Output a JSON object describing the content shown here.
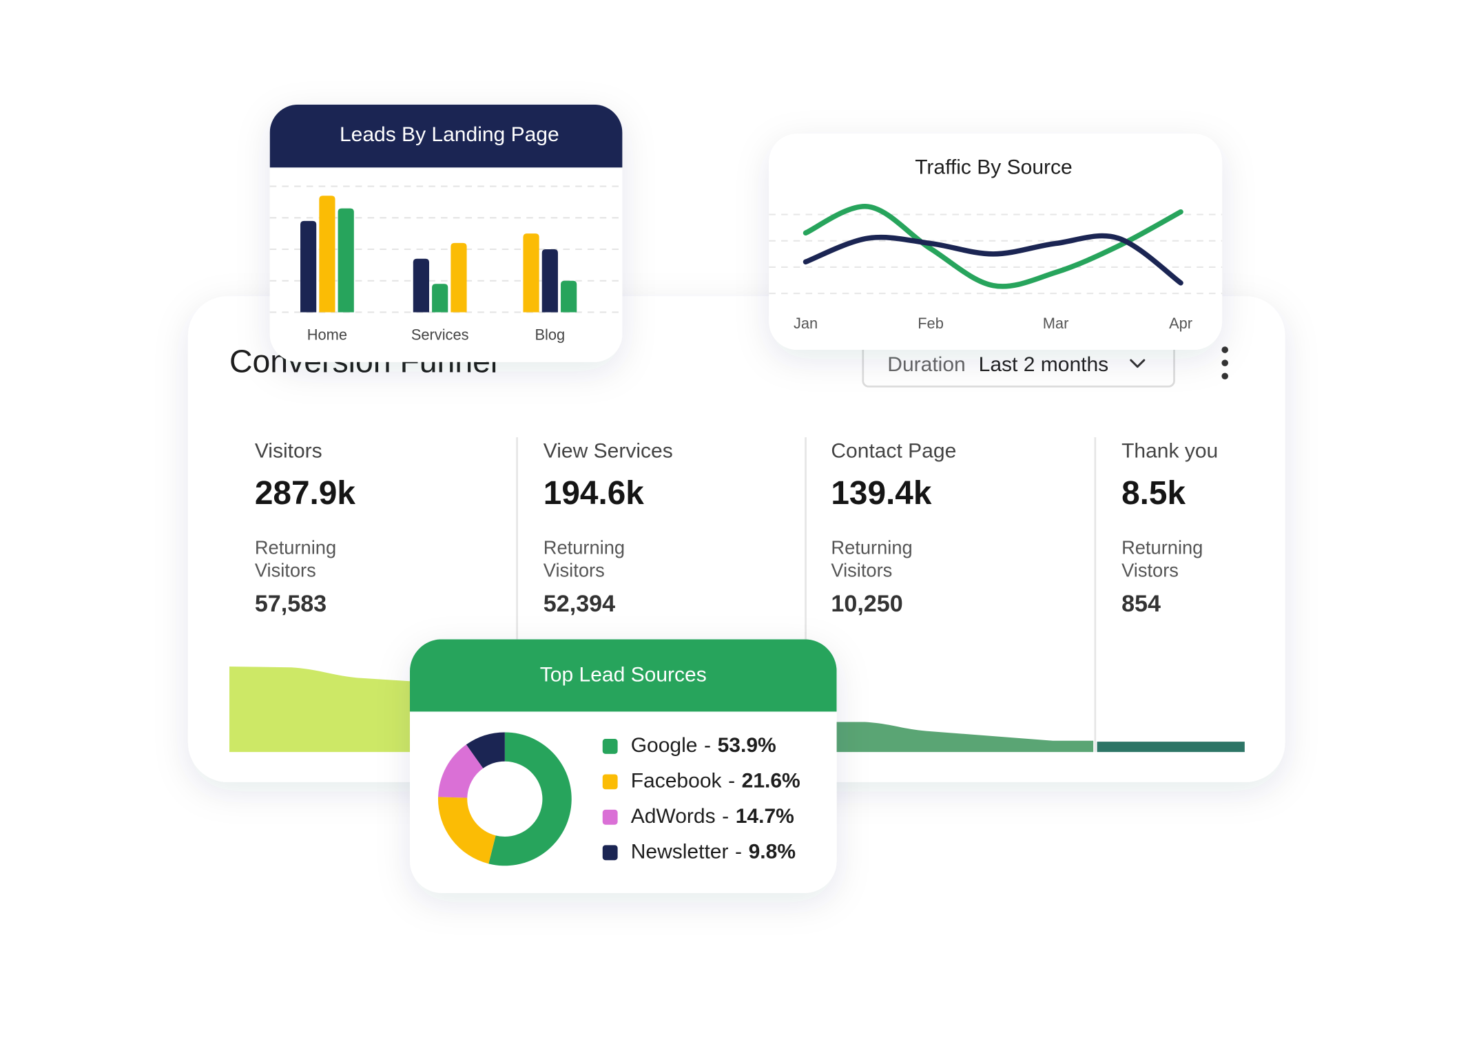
{
  "chart_data": [
    {
      "type": "bar",
      "title": "Leads By Landing Page",
      "categories": [
        "Home",
        "Services",
        "Blog"
      ],
      "series": [
        {
          "values": [
            2.9,
            1.7,
            2.5
          ],
          "colors": [
            "#1b2553",
            "#1b2553",
            "#fbbc05"
          ]
        },
        {
          "values": [
            3.7,
            0.9,
            2.0
          ],
          "colors": [
            "#fbbc05",
            "#27a45c",
            "#1b2553"
          ]
        },
        {
          "values": [
            3.3,
            2.2,
            1.0
          ],
          "colors": [
            "#27a45c",
            "#fbbc05",
            "#27a45c"
          ]
        }
      ],
      "ylim": [
        0,
        4
      ],
      "yticks": [
        0,
        1,
        2,
        3,
        4
      ],
      "grid": true
    },
    {
      "type": "line",
      "title": "Traffic By Source",
      "categories": [
        "Jan",
        null,
        "Feb",
        null,
        "Mar",
        null,
        "Apr"
      ],
      "series": [
        {
          "color": "#27a45c",
          "values": [
            2.3,
            3.3,
            1.7,
            0.3,
            0.8,
            1.8,
            3.1
          ]
        },
        {
          "color": "#1b2553",
          "values": [
            1.2,
            2.1,
            1.9,
            1.5,
            1.9,
            2.1,
            0.4
          ]
        }
      ],
      "ylim": [
        0,
        4
      ],
      "yticks": [
        0,
        1,
        2,
        3
      ],
      "grid": true
    },
    {
      "type": "pie",
      "title": "Top Lead Sources",
      "categories": [
        "Google",
        "Facebook",
        "AdWords",
        "Newsletter"
      ],
      "values": [
        53.9,
        21.6,
        14.7,
        9.8
      ],
      "value_labels": [
        "53.9%",
        "21.6%",
        "14.7%",
        "9.8%"
      ],
      "colors": [
        "#27a45c",
        "#fbbc05",
        "#da70d6",
        "#1b2553"
      ],
      "label_separator": "-"
    }
  ],
  "funnel": {
    "title": "Conversion Funnel",
    "duration_label": "Duration",
    "duration_value": "Last 2 months",
    "stages": [
      {
        "label": "Visitors",
        "value": "287.9k",
        "returning_label": [
          "Returning",
          "Visitors"
        ],
        "returning_value": "57,583"
      },
      {
        "label": "View Services",
        "value": "194.6k",
        "returning_label": [
          "Returning",
          "Visitors"
        ],
        "returning_value": "52,394"
      },
      {
        "label": "Contact Page",
        "value": "139.4k",
        "returning_label": [
          "Returning",
          "Visitors"
        ],
        "returning_value": "10,250"
      },
      {
        "label": "Thank you",
        "value": "8.5k",
        "returning_label": [
          "Returning",
          "Vistors"
        ],
        "returning_value": "854"
      }
    ]
  }
}
